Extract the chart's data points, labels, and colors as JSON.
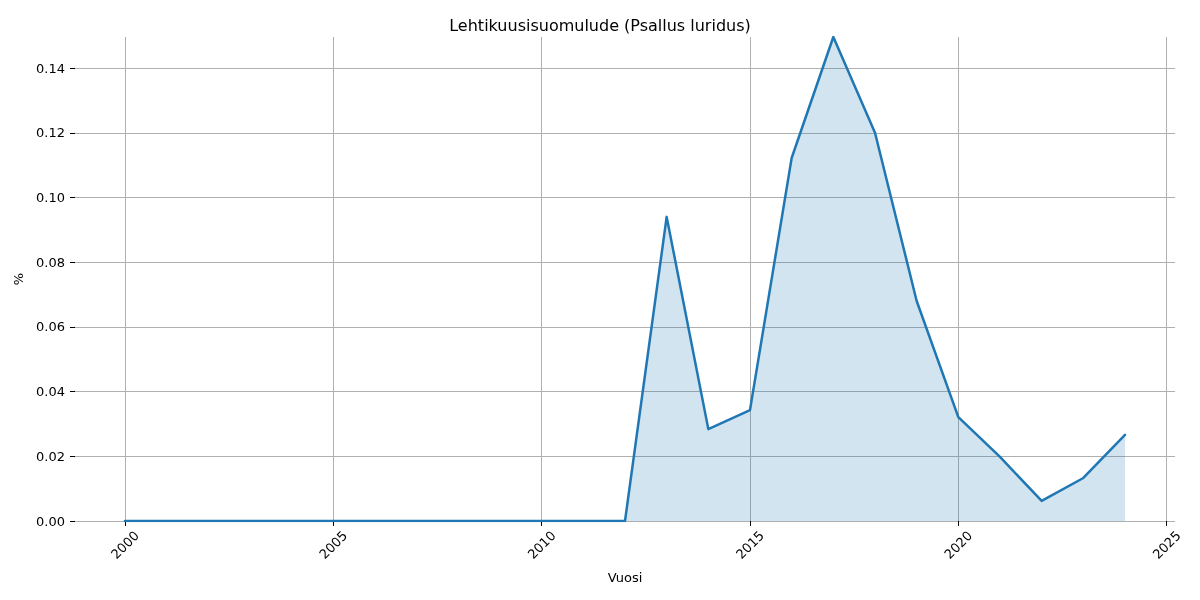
{
  "chart_data": {
    "type": "area",
    "title": "Lehtikuusisuomulude (Psallus luridus)",
    "xlabel": "Vuosi",
    "ylabel": "%",
    "x": [
      2000,
      2001,
      2002,
      2003,
      2004,
      2005,
      2006,
      2007,
      2008,
      2009,
      2010,
      2011,
      2012,
      2013,
      2014,
      2015,
      2016,
      2017,
      2018,
      2019,
      2020,
      2021,
      2022,
      2023,
      2024
    ],
    "series": [
      {
        "color": "#1f77b4",
        "values": [
          0,
          0,
          0,
          0,
          0,
          0,
          0,
          0,
          0,
          0,
          0,
          0,
          0,
          0.094,
          0.0284,
          0.0343,
          0.1122,
          0.1496,
          0.12,
          0.068,
          0.0321,
          0.0198,
          0.0062,
          0.0133,
          0.0266
        ]
      }
    ],
    "xlim": [
      1998.8,
      2025.2
    ],
    "xticks": [
      2000,
      2005,
      2010,
      2015,
      2020,
      2025
    ],
    "ylim": [
      0,
      0.1496
    ],
    "yticks": [
      {
        "value": 0,
        "label": "0.00"
      },
      0.02,
      0.04,
      0.06,
      0.08,
      {
        "value": 0.1,
        "label": "0.10"
      },
      0.12,
      0.14
    ],
    "grid": true,
    "marker": "none",
    "line_style": "solid"
  }
}
